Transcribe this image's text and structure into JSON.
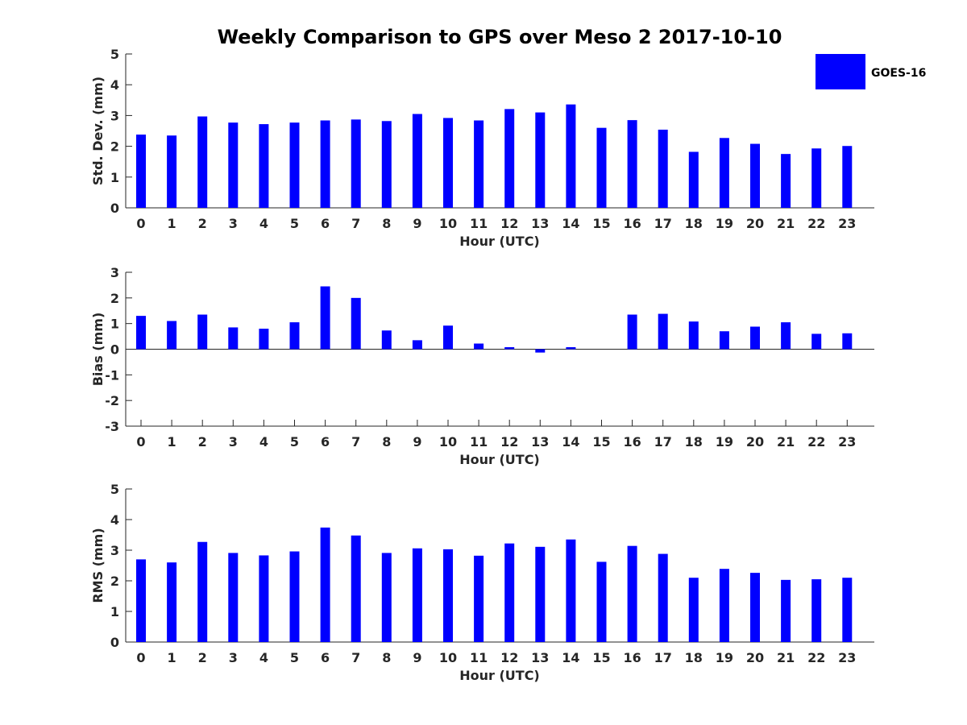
{
  "chart_data": [
    {
      "type": "bar",
      "title": "Weekly Comparison to GPS over Meso 2 2017-10-10",
      "xlabel": "Hour (UTC)",
      "ylabel": "Std. Dev. (mm)",
      "ylim": [
        0,
        5
      ],
      "yticks": [
        "0",
        "1",
        "2",
        "3",
        "4",
        "5"
      ],
      "categories": [
        "0",
        "1",
        "2",
        "3",
        "4",
        "5",
        "6",
        "7",
        "8",
        "9",
        "10",
        "11",
        "12",
        "13",
        "14",
        "15",
        "16",
        "17",
        "18",
        "19",
        "20",
        "21",
        "22",
        "23"
      ],
      "series": [
        {
          "name": "GOES-16",
          "color": "#0000ff",
          "values": [
            2.38,
            2.35,
            2.97,
            2.77,
            2.72,
            2.77,
            2.84,
            2.87,
            2.82,
            3.05,
            2.92,
            2.84,
            3.21,
            3.1,
            3.36,
            2.6,
            2.85,
            2.54,
            1.82,
            2.27,
            2.08,
            1.75,
            1.93,
            2.01
          ]
        }
      ],
      "grid": false,
      "legend": "top-right"
    },
    {
      "type": "bar",
      "xlabel": "Hour (UTC)",
      "ylabel": "Bias (mm)",
      "ylim": [
        -3,
        3
      ],
      "yticks": [
        "-3",
        "-2",
        "-1",
        "0",
        "1",
        "2",
        "3"
      ],
      "categories": [
        "0",
        "1",
        "2",
        "3",
        "4",
        "5",
        "6",
        "7",
        "8",
        "9",
        "10",
        "11",
        "12",
        "13",
        "14",
        "15",
        "16",
        "17",
        "18",
        "19",
        "20",
        "21",
        "22",
        "23"
      ],
      "series": [
        {
          "name": "GOES-16",
          "color": "#0000ff",
          "values": [
            1.3,
            1.1,
            1.35,
            0.85,
            0.8,
            1.05,
            2.45,
            2.0,
            0.73,
            0.35,
            0.92,
            0.22,
            0.08,
            -0.13,
            0.08,
            0.0,
            1.35,
            1.38,
            1.08,
            0.7,
            0.88,
            1.05,
            0.6,
            0.62
          ]
        }
      ],
      "grid": false
    },
    {
      "type": "bar",
      "xlabel": "Hour (UTC)",
      "ylabel": "RMS (mm)",
      "ylim": [
        0,
        5
      ],
      "yticks": [
        "0",
        "1",
        "2",
        "3",
        "4",
        "5"
      ],
      "categories": [
        "0",
        "1",
        "2",
        "3",
        "4",
        "5",
        "6",
        "7",
        "8",
        "9",
        "10",
        "11",
        "12",
        "13",
        "14",
        "15",
        "16",
        "17",
        "18",
        "19",
        "20",
        "21",
        "22",
        "23"
      ],
      "series": [
        {
          "name": "GOES-16",
          "color": "#0000ff",
          "values": [
            2.7,
            2.6,
            3.27,
            2.91,
            2.83,
            2.96,
            3.74,
            3.48,
            2.91,
            3.06,
            3.03,
            2.82,
            3.22,
            3.11,
            3.35,
            2.62,
            3.14,
            2.88,
            2.1,
            2.39,
            2.26,
            2.03,
            2.05,
            2.1
          ]
        }
      ],
      "grid": false
    }
  ],
  "legend": {
    "label": "GOES-16",
    "color": "#0000ff"
  }
}
